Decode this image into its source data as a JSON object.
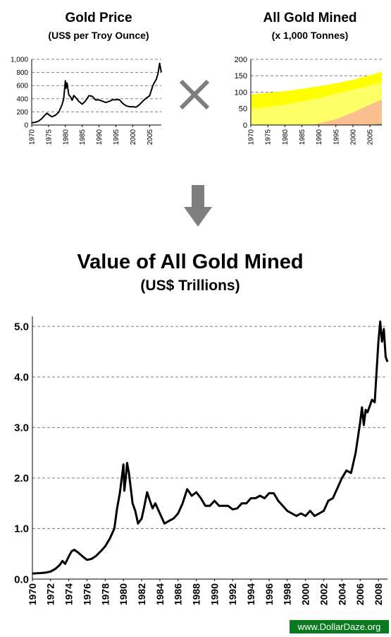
{
  "chart_data": [
    {
      "id": "gold-price",
      "type": "line",
      "title": "Gold Price",
      "subtitle": "(US$ per Troy Ounce)",
      "xlim": [
        1970,
        2008.5
      ],
      "ylim": [
        0,
        1000
      ],
      "x_ticks": [
        "1970",
        "1975",
        "1980",
        "1985",
        "1990",
        "1995",
        "2000",
        "2005"
      ],
      "y_ticks": [
        "0",
        "200",
        "400",
        "600",
        "800",
        "1,000"
      ],
      "grid": "horizontal dashed",
      "series": [
        {
          "x": [
            1970,
            1971,
            1972,
            1973,
            1974,
            1974.5,
            1975,
            1976,
            1977,
            1978,
            1979,
            1979.5,
            1980,
            1980.2,
            1980.5,
            1981,
            1981.5,
            1982,
            1982.5,
            1983,
            1984,
            1985,
            1986,
            1987,
            1988,
            1989,
            1990,
            1991,
            1992,
            1993,
            1994,
            1995,
            1996,
            1997,
            1998,
            1999,
            2000,
            2001,
            2002,
            2003,
            2004,
            2005,
            2006,
            2006.5,
            2007,
            2007.5,
            2008,
            2008.2,
            2008.5
          ],
          "y": [
            35,
            40,
            58,
            97,
            154,
            180,
            160,
            125,
            148,
            193,
            306,
            400,
            675,
            560,
            640,
            460,
            430,
            376,
            450,
            423,
            360,
            317,
            368,
            447,
            437,
            381,
            383,
            362,
            343,
            359,
            384,
            384,
            387,
            331,
            294,
            279,
            279,
            271,
            310,
            363,
            409,
            444,
            604,
            650,
            695,
            780,
            940,
            880,
            800
          ]
        }
      ]
    },
    {
      "id": "gold-mined",
      "type": "area",
      "title": "All Gold Mined",
      "subtitle": "(x 1,000 Tonnes)",
      "xlim": [
        1970,
        2008.5
      ],
      "ylim": [
        0,
        200
      ],
      "x_ticks": [
        "1970",
        "1975",
        "1980",
        "1985",
        "1990",
        "1995",
        "2000",
        "2005"
      ],
      "y_ticks": [
        "0",
        "50",
        "100",
        "150",
        "200"
      ],
      "grid": "horizontal dashed",
      "x": [
        1970,
        1975,
        1980,
        1985,
        1990,
        1995,
        2000,
        2005,
        2008.5
      ],
      "total": [
        93,
        98,
        103,
        110,
        118,
        127,
        138,
        152,
        162
      ]
    },
    {
      "id": "value-gold-mined",
      "type": "line",
      "title": "Value of All Gold Mined",
      "subtitle": "(US$ Trillions)",
      "xlim": [
        1970,
        2009
      ],
      "ylim": [
        0,
        5.2
      ],
      "x_ticks": [
        "1970",
        "1972",
        "1974",
        "1976",
        "1978",
        "1980",
        "1982",
        "1984",
        "1986",
        "1988",
        "1990",
        "1992",
        "1994",
        "1996",
        "1998",
        "2000",
        "2002",
        "2004",
        "2006",
        "2008"
      ],
      "y_ticks": [
        "0.0",
        "1.0",
        "2.0",
        "3.0",
        "4.0",
        "5.0"
      ],
      "grid": "horizontal dashed",
      "series": [
        {
          "x": [
            1970,
            1971,
            1971.5,
            1972,
            1972.5,
            1973,
            1973.3,
            1973.6,
            1974,
            1974.3,
            1974.6,
            1975,
            1975.5,
            1976,
            1976.5,
            1977,
            1977.5,
            1978,
            1978.5,
            1979,
            1979.3,
            1979.6,
            1980,
            1980.1,
            1980.25,
            1980.4,
            1980.6,
            1980.8,
            1981,
            1981.3,
            1981.6,
            1982,
            1982.3,
            1982.6,
            1983,
            1983.2,
            1983.5,
            1984,
            1984.5,
            1985,
            1985.5,
            1986,
            1986.5,
            1987,
            1987.5,
            1988,
            1988.5,
            1989,
            1989.5,
            1990,
            1990.5,
            1991,
            1991.5,
            1992,
            1992.5,
            1993,
            1993.5,
            1994,
            1994.5,
            1995,
            1995.5,
            1996,
            1996.5,
            1997,
            1997.5,
            1998,
            1998.5,
            1999,
            1999.5,
            2000,
            2000.5,
            2001,
            2001.5,
            2002,
            2002.5,
            2003,
            2003.5,
            2004,
            2004.5,
            2005,
            2005.5,
            2006,
            2006.2,
            2006.4,
            2006.6,
            2006.8,
            2007,
            2007.3,
            2007.6,
            2008,
            2008.2,
            2008.4,
            2008.6,
            2008.8,
            2009
          ],
          "y": [
            0.11,
            0.12,
            0.13,
            0.15,
            0.2,
            0.28,
            0.36,
            0.3,
            0.45,
            0.55,
            0.58,
            0.53,
            0.45,
            0.38,
            0.4,
            0.46,
            0.55,
            0.65,
            0.8,
            1.0,
            1.4,
            1.7,
            2.27,
            1.75,
            2.0,
            2.3,
            2.1,
            1.8,
            1.5,
            1.35,
            1.1,
            1.2,
            1.45,
            1.72,
            1.5,
            1.4,
            1.5,
            1.3,
            1.1,
            1.15,
            1.2,
            1.3,
            1.5,
            1.78,
            1.65,
            1.72,
            1.6,
            1.45,
            1.45,
            1.55,
            1.45,
            1.45,
            1.45,
            1.38,
            1.4,
            1.5,
            1.5,
            1.6,
            1.6,
            1.65,
            1.6,
            1.7,
            1.7,
            1.55,
            1.45,
            1.35,
            1.3,
            1.25,
            1.3,
            1.25,
            1.35,
            1.25,
            1.3,
            1.35,
            1.55,
            1.6,
            1.8,
            2.0,
            2.15,
            2.1,
            2.5,
            3.1,
            3.4,
            3.05,
            3.35,
            3.3,
            3.4,
            3.55,
            3.5,
            4.7,
            5.1,
            4.7,
            4.95,
            4.4,
            4.3
          ]
        }
      ]
    }
  ],
  "watermark": "www.DollarDaze.org",
  "colors": {
    "line": "#000000",
    "grid": "#7f7f7f",
    "area_yellow": "#ffff00",
    "area_light_yellow": "#ffff80",
    "area_orange": "#fac090",
    "area_green": "#9bbb59",
    "arrow": "#7f7f7f",
    "times_sign": "#7f7f7f",
    "watermark_bg": "#0a7a1e",
    "watermark_text": "#ffffff"
  }
}
